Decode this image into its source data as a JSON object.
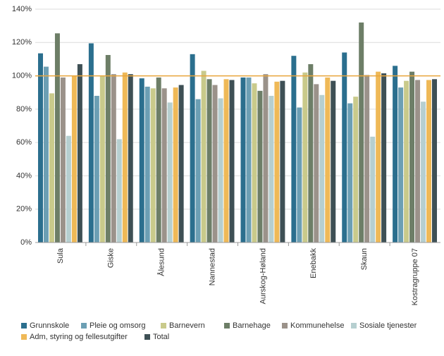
{
  "chart_data": {
    "type": "bar",
    "categories": [
      "Sula",
      "Giske",
      "Ålesund",
      "Nannestad",
      "Aurskog-Høland",
      "Enebakk",
      "Skaun",
      "Kostragruppe 07"
    ],
    "series": [
      {
        "name": "Grunnskole",
        "color": "#2b6f8e",
        "values": [
          113.5,
          119.5,
          98.5,
          113,
          99,
          112,
          114,
          106
        ]
      },
      {
        "name": "Pleie og omsorg",
        "color": "#6c9fb4",
        "values": [
          105.5,
          88,
          93.5,
          86,
          99,
          81,
          83.5,
          93
        ]
      },
      {
        "name": "Barnevern",
        "color": "#c9ca8b",
        "values": [
          89.5,
          100,
          92.5,
          103,
          95.5,
          102,
          87.5,
          97
        ]
      },
      {
        "name": "Barnehage",
        "color": "#6d7e67",
        "values": [
          125.5,
          112.5,
          99,
          98,
          91,
          107,
          132,
          102.5
        ]
      },
      {
        "name": "Kommunehelse",
        "color": "#9b928a",
        "values": [
          99,
          101,
          92.5,
          94.5,
          101,
          95,
          100.5,
          97.5
        ]
      },
      {
        "name": "Sosiale tjenester",
        "color": "#b6cfd0",
        "values": [
          64,
          62,
          84,
          86.5,
          88,
          88.5,
          63.5,
          84.5
        ]
      },
      {
        "name": "Adm, styring og fellesutgifter",
        "color": "#efb957",
        "values": [
          100,
          102,
          93,
          98,
          96.5,
          99,
          102.5,
          97.5
        ]
      },
      {
        "name": "Total",
        "color": "#3e5055",
        "values": [
          107,
          101,
          94.5,
          97.5,
          97,
          97,
          101.5,
          98
        ]
      }
    ],
    "ylim": [
      0,
      140
    ],
    "yticks": [
      {
        "value": 0,
        "label": "0%"
      },
      {
        "value": 20,
        "label": "20%"
      },
      {
        "value": 40,
        "label": "40%"
      },
      {
        "value": 60,
        "label": "60%"
      },
      {
        "value": 80,
        "label": "80%"
      },
      {
        "value": 100,
        "label": "100%"
      },
      {
        "value": 120,
        "label": "120%"
      },
      {
        "value": 140,
        "label": "140%"
      }
    ],
    "grid": true,
    "reference_line": 100,
    "reference_color": "#e8a53c",
    "legend": "bottom"
  }
}
